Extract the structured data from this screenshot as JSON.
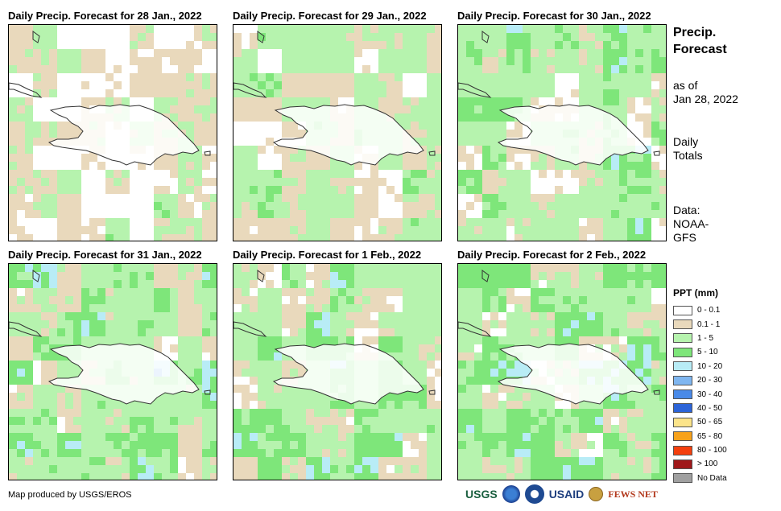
{
  "panels": [
    {
      "title": "Daily Precip. Forecast for 28 Jan., 2022"
    },
    {
      "title": "Daily Precip. Forecast for 29 Jan., 2022"
    },
    {
      "title": "Daily Precip. Forecast for 30 Jan., 2022"
    },
    {
      "title": "Daily Precip. Forecast for 31 Jan., 2022"
    },
    {
      "title": "Daily Precip. Forecast for 1 Feb., 2022"
    },
    {
      "title": "Daily Precip. Forecast for 2 Feb., 2022"
    }
  ],
  "sidebar": {
    "title_line1": "Precip.",
    "title_line2": "Forecast",
    "asof_line1": "as of",
    "asof_line2": "Jan 28, 2022",
    "totals_line1": "Daily",
    "totals_line2": "Totals",
    "data_line1": "Data:",
    "data_line2": "NOAA-",
    "data_line3": "GFS"
  },
  "legend": {
    "title": "PPT (mm)",
    "items": [
      {
        "label": "0 - 0.1",
        "color": "#ffffff"
      },
      {
        "label": "0.1 - 1",
        "color": "#e9d9bc"
      },
      {
        "label": "1 - 5",
        "color": "#b6f3ae"
      },
      {
        "label": "5 - 10",
        "color": "#7ee67a"
      },
      {
        "label": "10 - 20",
        "color": "#b8ecf6"
      },
      {
        "label": "20 - 30",
        "color": "#7fb6f0"
      },
      {
        "label": "30 - 40",
        "color": "#4a8ae8"
      },
      {
        "label": "40 - 50",
        "color": "#2c64d8"
      },
      {
        "label": "50 - 65",
        "color": "#fbe48a"
      },
      {
        "label": "65 - 80",
        "color": "#f7a21b"
      },
      {
        "label": "80 - 100",
        "color": "#f4400e"
      },
      {
        "label": "> 100",
        "color": "#a0181a"
      },
      {
        "label": "No Data",
        "color": "#a0a0a0"
      }
    ]
  },
  "footer": {
    "credit": "Map produced by USGS/EROS",
    "logo_usgs": "USGS",
    "logo_usaid": "USAID",
    "logo_fewsnet": "FEWS NET"
  }
}
